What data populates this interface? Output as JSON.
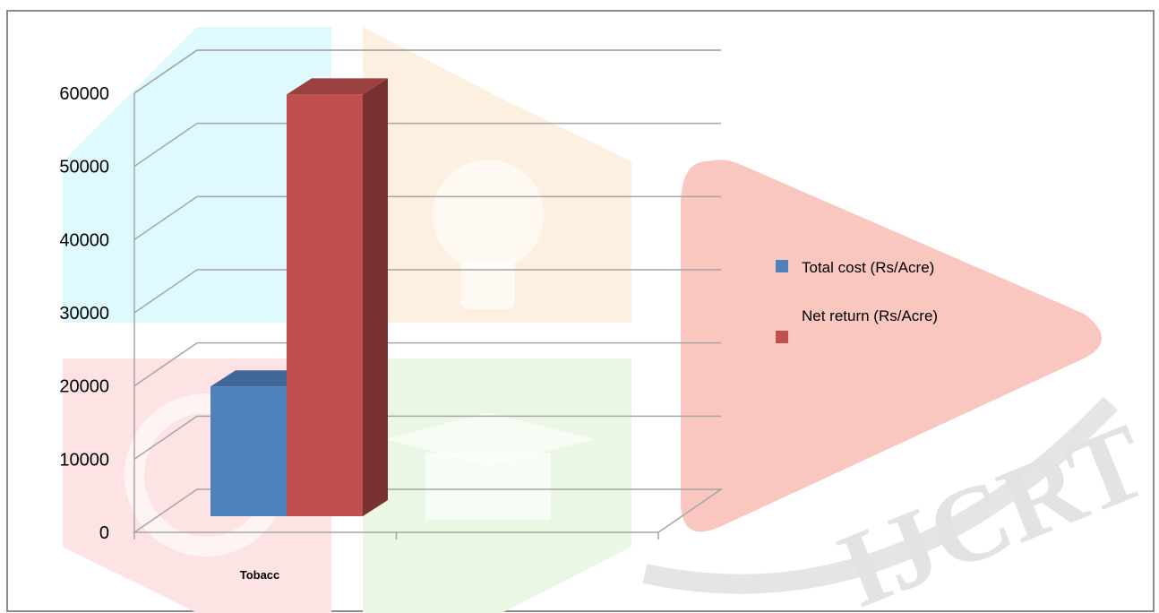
{
  "chart_data": {
    "type": "bar",
    "title": "",
    "xlabel": "",
    "ylabel": "",
    "categories": [
      "Tobacc"
    ],
    "series": [
      {
        "name": "Total cost (Rs/Acre)",
        "values": [
          18000
        ]
      },
      {
        "name": "Net return (Rs/Acre)",
        "values": [
          58500
        ]
      }
    ],
    "y_ticks": [
      "0",
      "10000",
      "20000",
      "30000",
      "40000",
      "50000",
      "60000"
    ],
    "ylim": [
      0,
      60000
    ],
    "grid": true,
    "legend_position": "right",
    "three_d": true,
    "colors": {
      "Total cost (Rs/Acre)": "#4f81bd",
      "Net return (Rs/Acre)": "#c0504d",
      "gridline": "#a6a6a6",
      "frame_border": "#8c8c8c"
    }
  },
  "watermark": {
    "text": "IJCRT"
  }
}
